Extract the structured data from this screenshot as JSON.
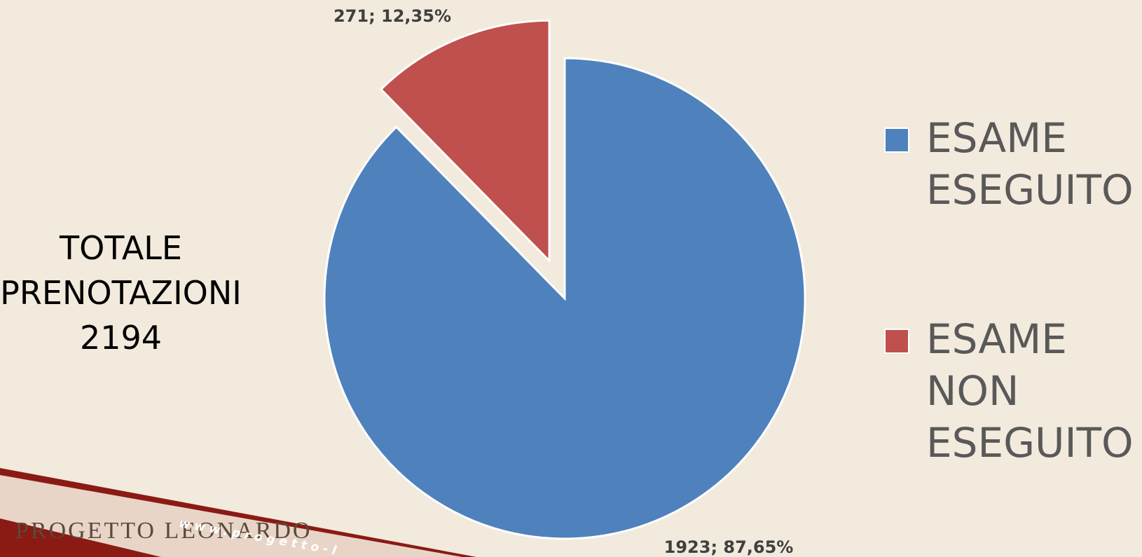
{
  "chart_data": {
    "type": "pie",
    "categories": [
      "ESAME ESEGUITO",
      "ESAME NON ESEGUITO"
    ],
    "values": [
      1923,
      271
    ],
    "value_labels": [
      "1923; 87,65%",
      "271; 12,35%"
    ],
    "colors": [
      "#4f81bd",
      "#c0504d"
    ],
    "annotation": "TOTALE PRENOTAZIONI",
    "total": 2194,
    "legend": "right"
  },
  "logo": {
    "name": "PROGETTO LEONARDO",
    "website": "www.progetto-l"
  }
}
